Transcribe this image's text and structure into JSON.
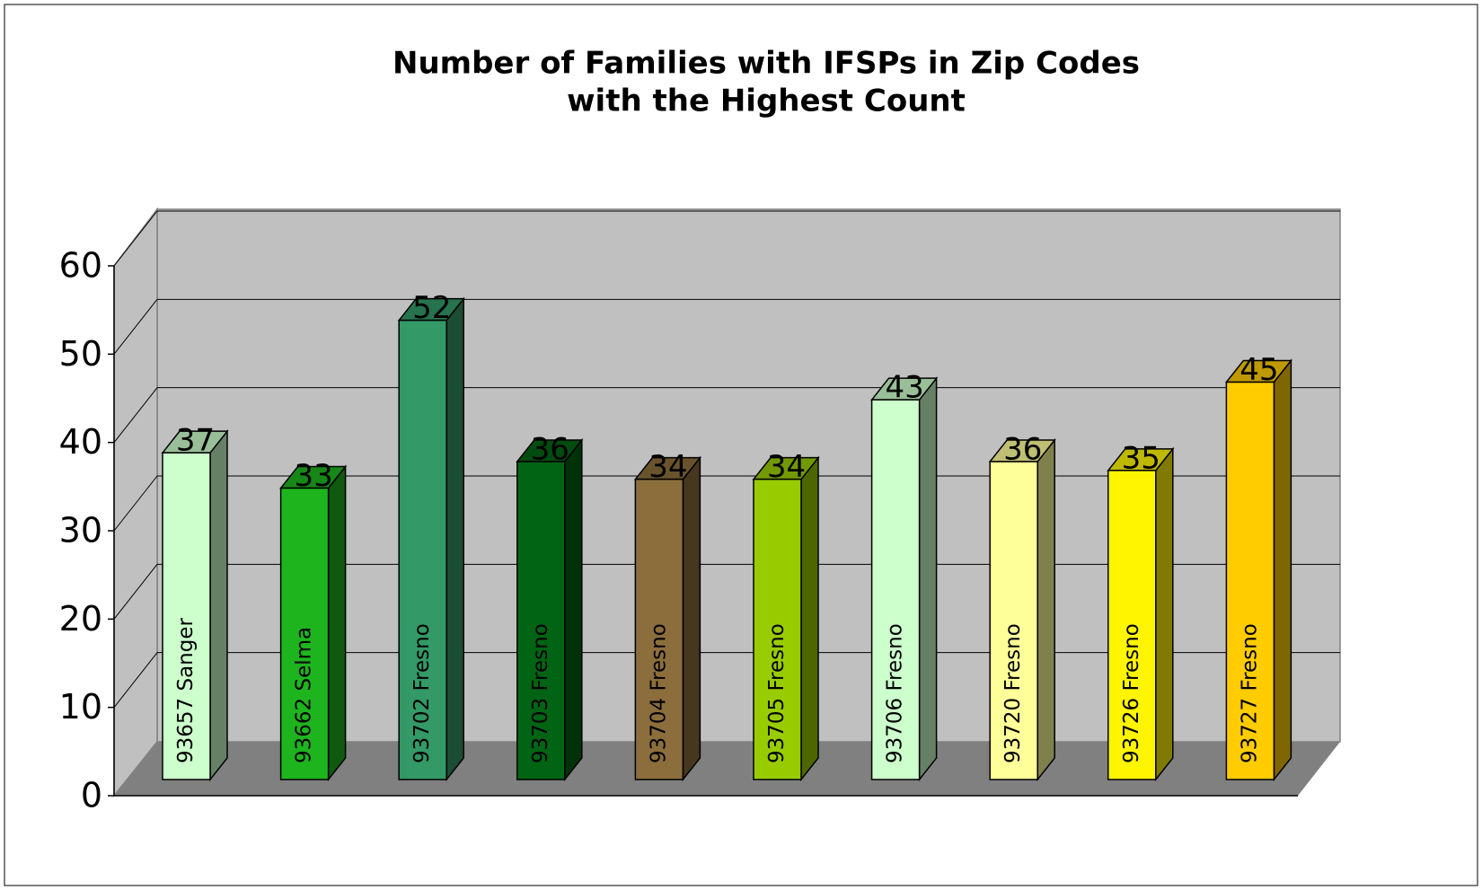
{
  "chart_data": {
    "type": "bar3d",
    "title": [
      "Number of Families with IFSPs in Zip Codes",
      "with the Highest Count"
    ],
    "categories": [
      "93657 Sanger",
      "93662 Selma",
      "93702 Fresno",
      "93703 Fresno",
      "93704 Fresno",
      "93705 Fresno",
      "93706 Fresno",
      "93720 Fresno",
      "93726 Fresno",
      "93727 Fresno"
    ],
    "values": [
      37,
      33,
      52,
      36,
      34,
      34,
      43,
      36,
      35,
      45
    ],
    "colors": [
      "#ccffcc",
      "#1eb41e",
      "#339966",
      "#006414",
      "#8c6e3c",
      "#99cc00",
      "#ccffcc",
      "#ffff99",
      "#fff500",
      "#ffcc00"
    ],
    "ylim": [
      0,
      60
    ],
    "yticks": [
      0,
      10,
      20,
      30,
      40,
      50,
      60
    ],
    "grid": true
  }
}
